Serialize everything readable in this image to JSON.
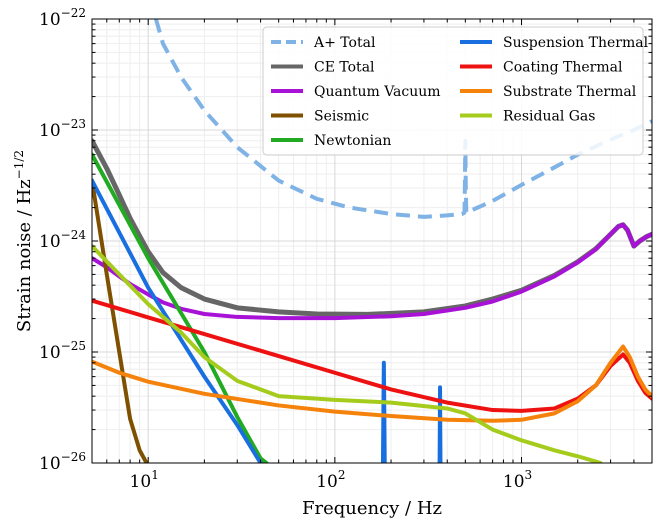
{
  "chart_data": {
    "type": "line",
    "xscale": "log",
    "yscale": "log",
    "xlim": [
      5,
      5000
    ],
    "ylim": [
      1e-26,
      1e-22
    ],
    "xlabel": "Frequency / Hz",
    "ylabel": "Strain noise / Hz",
    "ylabel_exponent": "−1/2",
    "x_ticks": [
      {
        "value": 10,
        "base": "10",
        "exp": "1"
      },
      {
        "value": 100,
        "base": "10",
        "exp": "2"
      },
      {
        "value": 1000,
        "base": "10",
        "exp": "3"
      }
    ],
    "y_ticks": [
      {
        "value": 1e-26,
        "base": "10",
        "exp": "−26"
      },
      {
        "value": 1e-25,
        "base": "10",
        "exp": "−25"
      },
      {
        "value": 1e-24,
        "base": "10",
        "exp": "−24"
      },
      {
        "value": 1e-23,
        "base": "10",
        "exp": "−23"
      },
      {
        "value": 1e-22,
        "base": "10",
        "exp": "−22"
      }
    ],
    "grid": true,
    "legend_position": "top-right",
    "legend_columns": 2,
    "series": [
      {
        "name": "A+ Total",
        "color": "#7fb2e5",
        "dash": true,
        "width": 4,
        "points": [
          [
            11,
            1e-22
          ],
          [
            12,
            6e-23
          ],
          [
            15,
            3e-23
          ],
          [
            20,
            1.5e-23
          ],
          [
            30,
            7e-24
          ],
          [
            50,
            3.5e-24
          ],
          [
            80,
            2.4e-24
          ],
          [
            120,
            2e-24
          ],
          [
            200,
            1.75e-24
          ],
          [
            300,
            1.65e-24
          ],
          [
            400,
            1.7e-24
          ],
          [
            480,
            1.75e-24
          ],
          [
            495,
            1.8e-24
          ],
          [
            497,
            3e-24
          ],
          [
            500,
            8e-24
          ],
          [
            503,
            3e-24
          ],
          [
            506,
            1.8e-24
          ],
          [
            700,
            2.3e-24
          ],
          [
            1000,
            3.2e-24
          ],
          [
            1500,
            4.6e-24
          ],
          [
            2000,
            6e-24
          ],
          [
            3000,
            8.2e-24
          ],
          [
            4000,
            1e-23
          ],
          [
            5000,
            1.2e-23
          ]
        ]
      },
      {
        "name": "CE Total",
        "color": "#666666",
        "dash": false,
        "width": 5,
        "points": [
          [
            5,
            8e-24
          ],
          [
            6,
            4.5e-24
          ],
          [
            7,
            2.6e-24
          ],
          [
            8,
            1.6e-24
          ],
          [
            10,
            8e-25
          ],
          [
            12,
            5.2e-25
          ],
          [
            15,
            3.8e-25
          ],
          [
            20,
            3e-25
          ],
          [
            30,
            2.5e-25
          ],
          [
            50,
            2.3e-25
          ],
          [
            80,
            2.2e-25
          ],
          [
            150,
            2.18e-25
          ],
          [
            300,
            2.3e-25
          ],
          [
            500,
            2.6e-25
          ],
          [
            700,
            3e-25
          ],
          [
            1000,
            3.6e-25
          ],
          [
            1500,
            4.9e-25
          ],
          [
            2000,
            6.5e-25
          ],
          [
            2500,
            8.5e-25
          ],
          [
            3000,
            1.15e-24
          ],
          [
            3300,
            1.35e-24
          ],
          [
            3500,
            1.4e-24
          ],
          [
            3700,
            1.25e-24
          ],
          [
            4000,
            9e-25
          ],
          [
            4300,
            1e-24
          ],
          [
            4700,
            1.1e-24
          ],
          [
            5000,
            1.15e-24
          ]
        ]
      },
      {
        "name": "Quantum Vacuum",
        "color": "#a812d6",
        "dash": false,
        "width": 4,
        "points": [
          [
            5,
            7e-25
          ],
          [
            6,
            5.8e-25
          ],
          [
            7,
            4.8e-25
          ],
          [
            8,
            4.1e-25
          ],
          [
            10,
            3.3e-25
          ],
          [
            12,
            2.8e-25
          ],
          [
            15,
            2.45e-25
          ],
          [
            20,
            2.2e-25
          ],
          [
            30,
            2.07e-25
          ],
          [
            50,
            2.02e-25
          ],
          [
            100,
            2.02e-25
          ],
          [
            200,
            2.1e-25
          ],
          [
            300,
            2.2e-25
          ],
          [
            500,
            2.5e-25
          ],
          [
            700,
            2.85e-25
          ],
          [
            1000,
            3.5e-25
          ],
          [
            1500,
            4.8e-25
          ],
          [
            2000,
            6.4e-25
          ],
          [
            2500,
            8.4e-25
          ],
          [
            3000,
            1.15e-24
          ],
          [
            3300,
            1.35e-24
          ],
          [
            3500,
            1.4e-24
          ],
          [
            3700,
            1.25e-24
          ],
          [
            4000,
            9e-25
          ],
          [
            4300,
            1e-24
          ],
          [
            4700,
            1.1e-24
          ],
          [
            5000,
            1.15e-24
          ]
        ]
      },
      {
        "name": "Seismic",
        "color": "#7f5000",
        "dash": false,
        "width": 4,
        "points": [
          [
            5,
            3.5e-24
          ],
          [
            6,
            5e-25
          ],
          [
            7,
            1e-25
          ],
          [
            8,
            2.5e-26
          ],
          [
            9,
            1.3e-26
          ],
          [
            9.8,
            1e-26
          ]
        ]
      },
      {
        "name": "Newtonian",
        "color": "#22aa22",
        "dash": false,
        "width": 4,
        "points": [
          [
            5,
            6e-24
          ],
          [
            10,
            7e-25
          ],
          [
            20,
            1e-25
          ],
          [
            30,
            2.6e-26
          ],
          [
            40,
            1.1e-26
          ],
          [
            43,
            1e-26
          ]
        ]
      },
      {
        "name": "Suspension Thermal",
        "color": "#1a6fe0",
        "dash": false,
        "width": 4,
        "points": [
          [
            5,
            3.5e-24
          ],
          [
            10,
            3.8e-25
          ],
          [
            20,
            6e-26
          ],
          [
            30,
            2.2e-26
          ],
          [
            40,
            1e-26
          ]
        ]
      },
      {
        "name": "Suspension Thermal (violin modes)",
        "color": "#1a6fe0",
        "dash": false,
        "width": 4,
        "points": [
          [
            181,
            1e-26
          ],
          [
            182,
            3e-26
          ],
          [
            183,
            8e-26
          ],
          [
            184,
            3e-26
          ],
          [
            185,
            1e-26
          ]
        ]
      },
      {
        "name": "Suspension Thermal (violin harmonic)",
        "color": "#1a6fe0",
        "dash": false,
        "width": 4,
        "points": [
          [
            364,
            1e-26
          ],
          [
            365,
            2e-26
          ],
          [
            366,
            4.8e-26
          ],
          [
            367,
            2e-26
          ],
          [
            368,
            1e-26
          ]
        ]
      },
      {
        "name": "Coating Thermal",
        "color": "#ee1111",
        "dash": false,
        "width": 4,
        "points": [
          [
            5,
            2.9e-25
          ],
          [
            10,
            2.05e-25
          ],
          [
            20,
            1.45e-25
          ],
          [
            50,
            9.2e-26
          ],
          [
            100,
            6.5e-26
          ],
          [
            200,
            4.6e-26
          ],
          [
            400,
            3.5e-26
          ],
          [
            700,
            3e-26
          ],
          [
            1000,
            2.95e-26
          ],
          [
            1500,
            3.1e-26
          ],
          [
            2000,
            3.8e-26
          ],
          [
            2500,
            5e-26
          ],
          [
            3000,
            7.5e-26
          ],
          [
            3500,
            9.5e-26
          ],
          [
            3800,
            8e-26
          ],
          [
            4200,
            5.5e-26
          ],
          [
            4600,
            4.3e-26
          ],
          [
            5000,
            3.8e-26
          ]
        ]
      },
      {
        "name": "Substrate Thermal",
        "color": "#f5820a",
        "dash": false,
        "width": 4,
        "points": [
          [
            5,
            8.2e-26
          ],
          [
            7,
            6.5e-26
          ],
          [
            10,
            5.4e-26
          ],
          [
            20,
            4.2e-26
          ],
          [
            50,
            3.3e-26
          ],
          [
            100,
            2.9e-26
          ],
          [
            200,
            2.65e-26
          ],
          [
            400,
            2.45e-26
          ],
          [
            700,
            2.4e-26
          ],
          [
            1000,
            2.45e-26
          ],
          [
            1500,
            2.8e-26
          ],
          [
            2000,
            3.6e-26
          ],
          [
            2500,
            5e-26
          ],
          [
            3000,
            8e-26
          ],
          [
            3500,
            1.12e-25
          ],
          [
            3800,
            9e-26
          ],
          [
            4200,
            6e-26
          ],
          [
            4600,
            4.6e-26
          ],
          [
            5000,
            4e-26
          ]
        ]
      },
      {
        "name": "Residual Gas",
        "color": "#a5cc1c",
        "dash": false,
        "width": 4,
        "points": [
          [
            5,
            9e-25
          ],
          [
            7,
            5e-25
          ],
          [
            10,
            2.7e-25
          ],
          [
            15,
            1.5e-25
          ],
          [
            20,
            9e-26
          ],
          [
            30,
            5.5e-26
          ],
          [
            50,
            4e-26
          ],
          [
            100,
            3.7e-26
          ],
          [
            200,
            3.5e-26
          ],
          [
            400,
            3.1e-26
          ],
          [
            500,
            2.8e-26
          ],
          [
            700,
            2e-26
          ],
          [
            1000,
            1.6e-26
          ],
          [
            1500,
            1.3e-26
          ],
          [
            2000,
            1.15e-26
          ],
          [
            2500,
            1.03e-26
          ],
          [
            2650,
            1e-26
          ]
        ]
      }
    ],
    "legend": [
      {
        "label": "A+ Total",
        "color": "#7fb2e5",
        "dash": true
      },
      {
        "label": "CE Total",
        "color": "#666666",
        "dash": false
      },
      {
        "label": "Quantum Vacuum",
        "color": "#a812d6",
        "dash": false
      },
      {
        "label": "Seismic",
        "color": "#7f5000",
        "dash": false
      },
      {
        "label": "Newtonian",
        "color": "#22aa22",
        "dash": false
      },
      {
        "label": "Suspension Thermal",
        "color": "#1a6fe0",
        "dash": false
      },
      {
        "label": "Coating Thermal",
        "color": "#ee1111",
        "dash": false
      },
      {
        "label": "Substrate Thermal",
        "color": "#f5820a",
        "dash": false
      },
      {
        "label": "Residual Gas",
        "color": "#a5cc1c",
        "dash": false
      }
    ]
  }
}
